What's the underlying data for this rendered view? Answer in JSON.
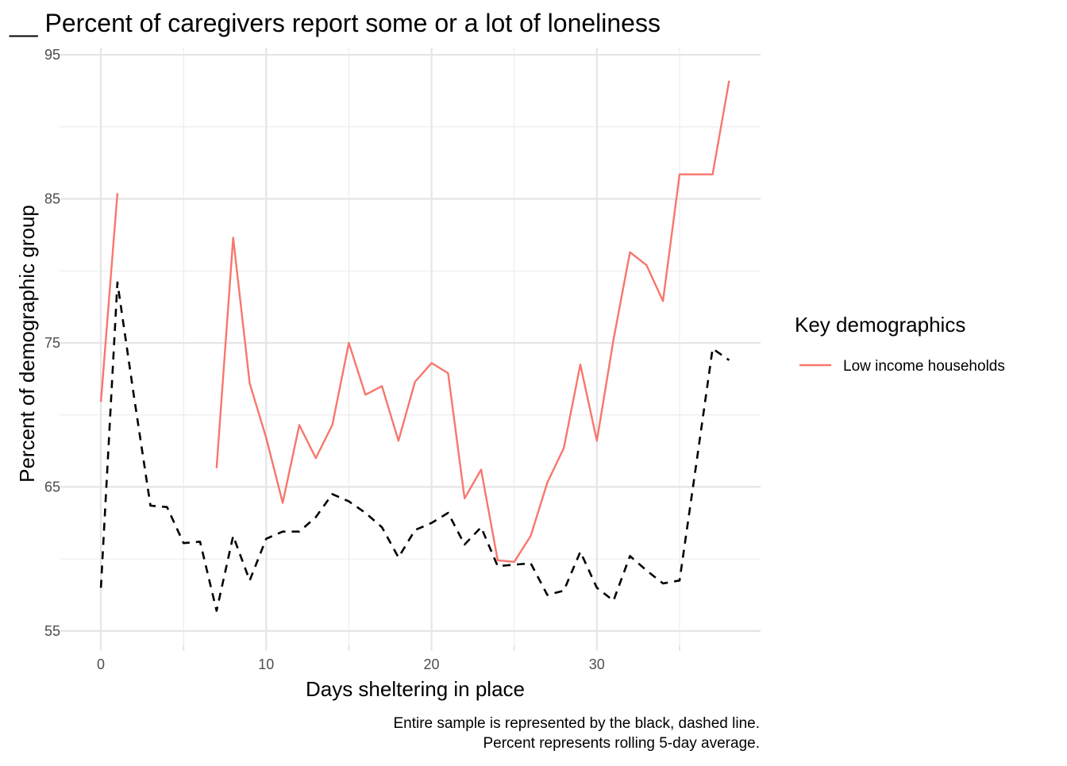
{
  "chart_data": {
    "type": "line",
    "title": "__ Percent of caregivers report some or a lot of loneliness",
    "xlabel": "Days sheltering in place",
    "ylabel": "Percent of demographic group",
    "xlim": [
      -2.5,
      39.9
    ],
    "ylim": [
      54,
      95.5
    ],
    "x_ticks": [
      0,
      10,
      20,
      30
    ],
    "y_ticks": [
      55,
      65,
      75,
      85,
      95
    ],
    "x_minor": [
      5,
      15,
      25,
      35
    ],
    "y_minor": [
      60,
      70,
      80,
      90
    ],
    "grid": true,
    "legend": {
      "title": "Key demographics",
      "position": "right",
      "entries": [
        "Low income households"
      ]
    },
    "caption": [
      "Entire sample is represented by the black, dashed line.",
      "Percent represents rolling 5-day average."
    ],
    "series": [
      {
        "name": "Low income households",
        "color": "#f8766d",
        "style": "solid",
        "segments": [
          [
            [
              0,
              70.9
            ],
            [
              1,
              85.4
            ]
          ],
          [
            [
              7,
              66.3
            ],
            [
              8,
              82.3
            ],
            [
              9,
              72.2
            ],
            [
              10,
              68.4
            ],
            [
              11,
              63.9
            ],
            [
              12,
              69.3
            ],
            [
              13,
              67.0
            ],
            [
              14,
              69.3
            ],
            [
              15,
              75.0
            ],
            [
              16,
              71.4
            ],
            [
              17,
              72.0
            ],
            [
              18,
              68.2
            ],
            [
              19,
              72.3
            ],
            [
              20,
              73.6
            ],
            [
              21,
              72.9
            ],
            [
              22,
              64.2
            ],
            [
              23,
              66.2
            ],
            [
              24,
              59.9
            ],
            [
              25,
              59.8
            ],
            [
              26,
              61.6
            ],
            [
              27,
              65.3
            ],
            [
              28,
              67.7
            ],
            [
              29,
              73.5
            ],
            [
              30,
              68.2
            ],
            [
              31,
              75.2
            ],
            [
              32,
              81.3
            ],
            [
              33,
              80.4
            ],
            [
              34,
              77.9
            ],
            [
              35,
              86.7
            ],
            [
              36,
              86.7
            ],
            [
              37,
              86.7
            ],
            [
              38,
              93.2
            ]
          ]
        ]
      },
      {
        "name": "",
        "color": "#000000",
        "style": "dashed",
        "segments": [
          [
            [
              0,
              58.0
            ],
            [
              1,
              79.2
            ],
            [
              2,
              71.3
            ],
            [
              3,
              63.7
            ],
            [
              4,
              63.6
            ],
            [
              5,
              61.1
            ],
            [
              6,
              61.2
            ],
            [
              7,
              56.4
            ],
            [
              8,
              61.6
            ],
            [
              9,
              58.5
            ],
            [
              10,
              61.4
            ],
            [
              11,
              61.9
            ],
            [
              12,
              61.9
            ],
            [
              13,
              62.9
            ],
            [
              14,
              64.5
            ],
            [
              15,
              64.0
            ],
            [
              16,
              63.2
            ],
            [
              17,
              62.2
            ],
            [
              18,
              60.1
            ],
            [
              19,
              62.0
            ],
            [
              20,
              62.5
            ],
            [
              21,
              63.2
            ],
            [
              22,
              61.0
            ],
            [
              23,
              62.2
            ],
            [
              24,
              59.5
            ],
            [
              25,
              59.6
            ],
            [
              26,
              59.7
            ],
            [
              27,
              57.5
            ],
            [
              28,
              57.8
            ],
            [
              29,
              60.5
            ],
            [
              30,
              58.0
            ],
            [
              31,
              57.1
            ],
            [
              32,
              60.2
            ],
            [
              33,
              59.2
            ],
            [
              34,
              58.3
            ],
            [
              35,
              58.5
            ],
            [
              36,
              66.5
            ],
            [
              37,
              74.6
            ],
            [
              38,
              73.8
            ]
          ]
        ]
      }
    ]
  }
}
